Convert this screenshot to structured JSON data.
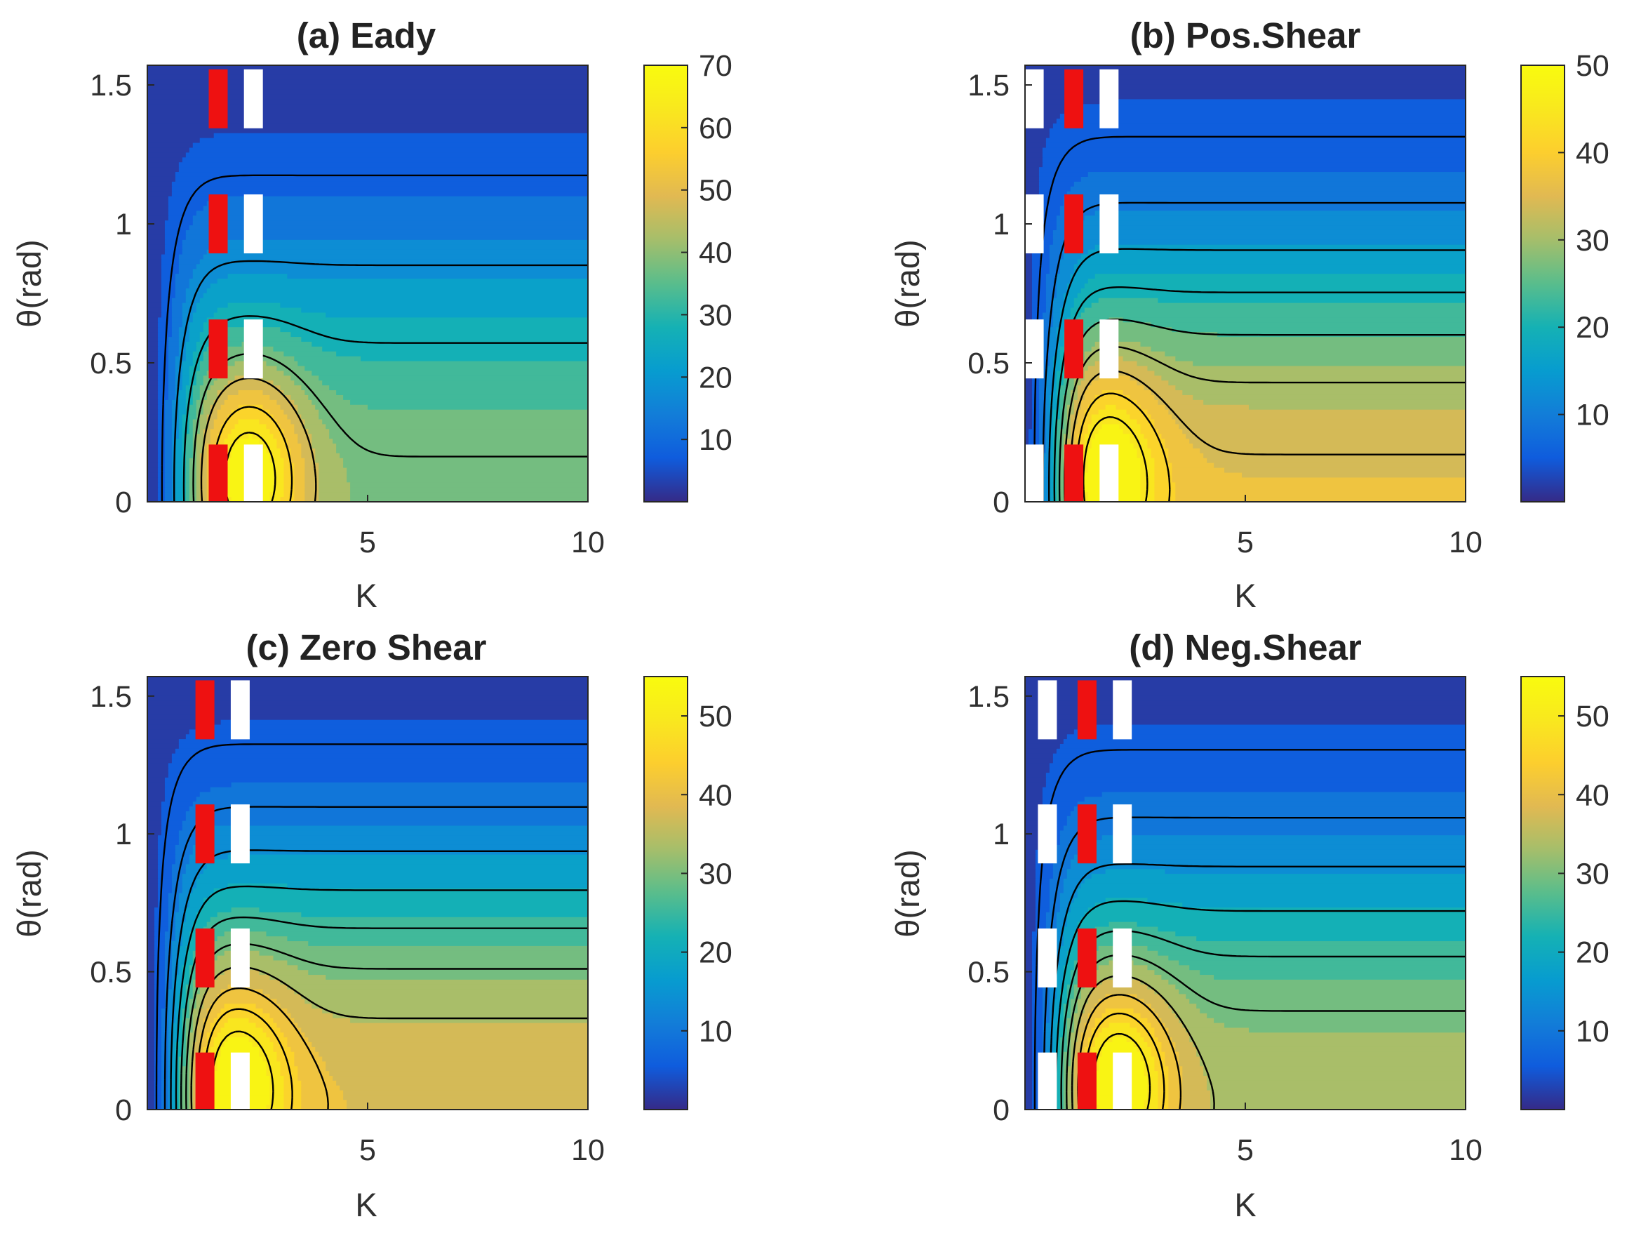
{
  "chart_data": [
    {
      "type": "contourf",
      "panel": "a",
      "title": "(a) Eady",
      "xlabel": "K",
      "ylabel": "θ(rad)",
      "xlim": [
        0,
        10
      ],
      "ylim": [
        0,
        1.5708
      ],
      "xticks": [
        5,
        10
      ],
      "xtick_labels": [
        "5",
        "10"
      ],
      "yticks": [
        0,
        0.5,
        1,
        1.5
      ],
      "ytick_labels": [
        "0",
        "0.5",
        "1",
        "1.5"
      ],
      "colorbar": {
        "range": [
          0,
          70
        ],
        "ticks": [
          10,
          20,
          30,
          40,
          50,
          60,
          70
        ],
        "tick_labels": [
          "10",
          "20",
          "30",
          "40",
          "50",
          "60",
          "70"
        ]
      },
      "peak": {
        "K": 2.3,
        "theta": 0.1,
        "value": 68
      },
      "far_field_value": 36,
      "contour_levels": [
        8,
        18,
        28,
        38,
        46,
        56,
        64
      ],
      "markers": [
        {
          "color": "red",
          "K": 1.6,
          "thetas": [
            0.1,
            0.55,
            1.0,
            1.45
          ]
        },
        {
          "color": "white",
          "K": 2.4,
          "thetas": [
            0.1,
            0.55,
            1.0,
            1.45
          ]
        }
      ]
    },
    {
      "type": "contourf",
      "panel": "b",
      "title": "(b) Pos.Shear",
      "xlabel": "K",
      "ylabel": "θ(rad)",
      "xlim": [
        0,
        10
      ],
      "ylim": [
        0,
        1.5708
      ],
      "xticks": [
        5,
        10
      ],
      "xtick_labels": [
        "5",
        "10"
      ],
      "yticks": [
        0,
        0.5,
        1,
        1.5
      ],
      "ytick_labels": [
        "0",
        "0.5",
        "1",
        "1.5"
      ],
      "colorbar": {
        "range": [
          0,
          50
        ],
        "ticks": [
          10,
          20,
          30,
          40,
          50
        ],
        "tick_labels": [
          "10",
          "20",
          "30",
          "40",
          "50"
        ]
      },
      "peak": {
        "K": 1.8,
        "theta": 0.1,
        "value": 50
      },
      "far_field_value": 33,
      "contour_levels": [
        5,
        10,
        15,
        20,
        25,
        30,
        35,
        40,
        45
      ],
      "markers": [
        {
          "color": "white",
          "K": 0.2,
          "thetas": [
            0.1,
            0.55,
            1.0,
            1.45
          ]
        },
        {
          "color": "red",
          "K": 1.1,
          "thetas": [
            0.1,
            0.55,
            1.0,
            1.45
          ]
        },
        {
          "color": "white",
          "K": 1.9,
          "thetas": [
            0.1,
            0.55,
            1.0,
            1.45
          ]
        }
      ]
    },
    {
      "type": "contourf",
      "panel": "c",
      "title": "(c) Zero Shear",
      "xlabel": "K",
      "ylabel": "θ(rad)",
      "xlim": [
        0,
        10
      ],
      "ylim": [
        0,
        1.5708
      ],
      "xticks": [
        5,
        10
      ],
      "xtick_labels": [
        "5",
        "10"
      ],
      "yticks": [
        0,
        0.5,
        1,
        1.5
      ],
      "ytick_labels": [
        "0",
        "0.5",
        "1",
        "1.5"
      ],
      "colorbar": {
        "range": [
          0,
          55
        ],
        "ticks": [
          10,
          20,
          30,
          40,
          50
        ],
        "tick_labels": [
          "10",
          "20",
          "30",
          "40",
          "50"
        ]
      },
      "peak": {
        "K": 2.0,
        "theta": 0.1,
        "value": 54
      },
      "far_field_value": 36,
      "contour_levels": [
        5,
        10,
        15,
        20,
        25,
        30,
        35,
        40,
        45,
        50
      ],
      "markers": [
        {
          "color": "red",
          "K": 1.3,
          "thetas": [
            0.1,
            0.55,
            1.0,
            1.45
          ]
        },
        {
          "color": "white",
          "K": 2.1,
          "thetas": [
            0.1,
            0.55,
            1.0,
            1.45
          ]
        }
      ]
    },
    {
      "type": "contourf",
      "panel": "d",
      "title": "(d) Neg.Shear",
      "xlabel": "K",
      "ylabel": "θ(rad)",
      "xlim": [
        0,
        10
      ],
      "ylim": [
        0,
        1.5708
      ],
      "xticks": [
        5,
        10
      ],
      "xtick_labels": [
        "5",
        "10"
      ],
      "yticks": [
        0,
        0.5,
        1,
        1.5
      ],
      "ytick_labels": [
        "0",
        "0.5",
        "1",
        "1.5"
      ],
      "colorbar": {
        "range": [
          0,
          55
        ],
        "ticks": [
          10,
          20,
          30,
          40,
          50
        ],
        "tick_labels": [
          "10",
          "20",
          "30",
          "40",
          "50"
        ]
      },
      "peak": {
        "K": 2.1,
        "theta": 0.1,
        "value": 54
      },
      "far_field_value": 31,
      "contour_levels": [
        5,
        10,
        15,
        20,
        25,
        30,
        35,
        40,
        45,
        50
      ],
      "markers": [
        {
          "color": "white",
          "K": 0.5,
          "thetas": [
            0.1,
            0.55,
            1.0,
            1.45
          ]
        },
        {
          "color": "red",
          "K": 1.4,
          "thetas": [
            0.1,
            0.55,
            1.0,
            1.45
          ]
        },
        {
          "color": "white",
          "K": 2.2,
          "thetas": [
            0.1,
            0.55,
            1.0,
            1.45
          ]
        }
      ]
    }
  ]
}
